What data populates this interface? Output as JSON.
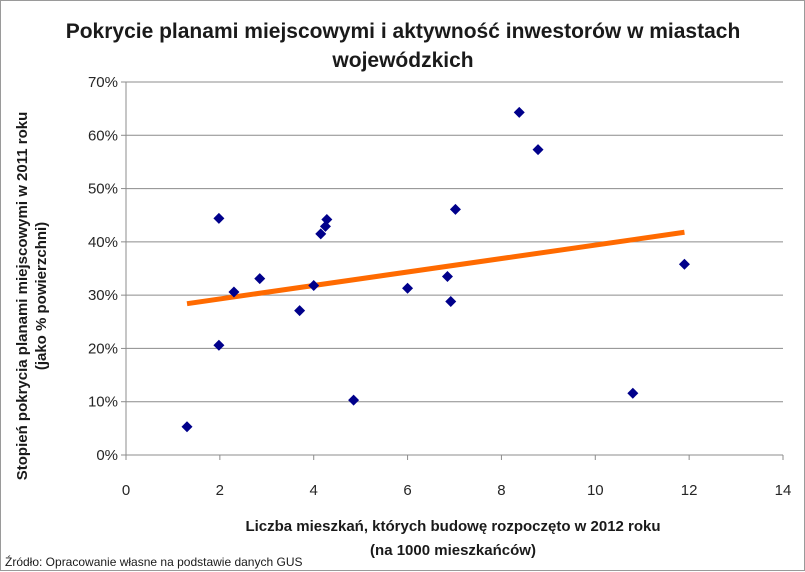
{
  "chart_data": {
    "type": "scatter",
    "title_lines": [
      "Pokrycie planami miejscowymi i aktywność inwestorów w miastach",
      "wojewódzkich"
    ],
    "xlabel_lines": [
      "Liczba mieszkań, których budowę rozpoczęto w 2012 roku",
      "(na 1000 mieszkańców)"
    ],
    "ylabel_lines": [
      "Stopień pokrycia planami miejscowymi w 2011 roku",
      "(jako % powierzchni)"
    ],
    "xlim": [
      0,
      14
    ],
    "ylim": [
      0,
      0.7
    ],
    "x_ticks": [
      0,
      2,
      4,
      6,
      8,
      10,
      12,
      14
    ],
    "y_ticks": [
      0,
      0.1,
      0.2,
      0.3,
      0.4,
      0.5,
      0.6,
      0.7
    ],
    "y_tick_labels": [
      "0%",
      "10%",
      "20%",
      "30%",
      "40%",
      "50%",
      "60%",
      "70%"
    ],
    "grid": "horizontal",
    "marker_color": "#00008B",
    "trendline_color": "#FF6A00",
    "points": [
      {
        "x": 1.3,
        "y": 0.053
      },
      {
        "x": 1.98,
        "y": 0.444
      },
      {
        "x": 1.98,
        "y": 0.206
      },
      {
        "x": 2.3,
        "y": 0.306
      },
      {
        "x": 2.85,
        "y": 0.331
      },
      {
        "x": 3.7,
        "y": 0.271
      },
      {
        "x": 4.0,
        "y": 0.318
      },
      {
        "x": 4.15,
        "y": 0.415
      },
      {
        "x": 4.25,
        "y": 0.429
      },
      {
        "x": 4.28,
        "y": 0.442
      },
      {
        "x": 4.85,
        "y": 0.103
      },
      {
        "x": 6.0,
        "y": 0.313
      },
      {
        "x": 6.85,
        "y": 0.335
      },
      {
        "x": 6.92,
        "y": 0.288
      },
      {
        "x": 7.02,
        "y": 0.461
      },
      {
        "x": 8.38,
        "y": 0.643
      },
      {
        "x": 8.78,
        "y": 0.573
      },
      {
        "x": 10.8,
        "y": 0.116
      },
      {
        "x": 11.9,
        "y": 0.358
      }
    ],
    "trendline": {
      "x": [
        1.3,
        11.9
      ],
      "y": [
        0.284,
        0.418
      ]
    }
  },
  "source_note": "Źródło: Opracowanie własne na podstawie danych GUS"
}
